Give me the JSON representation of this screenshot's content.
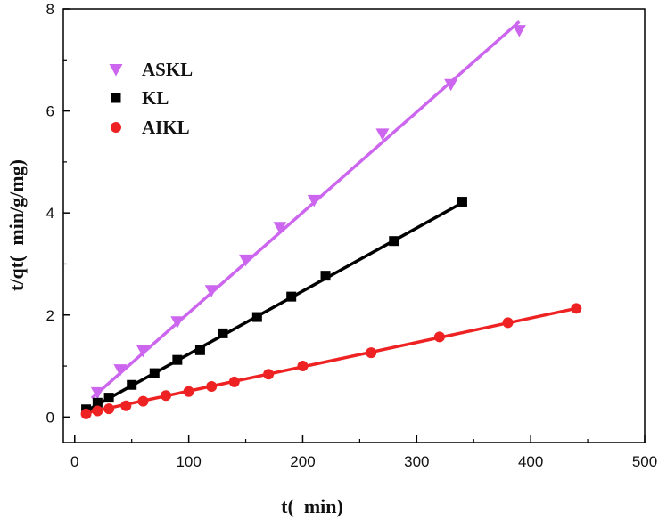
{
  "chart_data": {
    "type": "scatter",
    "title": "",
    "xlabel": "t(  min)",
    "ylabel": "t/qt(  min/g/mg)",
    "xlim": [
      -10,
      500
    ],
    "ylim": [
      -0.5,
      8
    ],
    "xticks": [
      0,
      100,
      200,
      300,
      400,
      500
    ],
    "yticks": [
      0,
      2,
      4,
      6,
      8
    ],
    "grid": false,
    "legend_position": "top-left",
    "series": [
      {
        "name": "ASKL",
        "color": "#cc66ee",
        "marker": "triangle-down",
        "x": [
          20,
          40,
          60,
          90,
          120,
          150,
          180,
          210,
          270,
          330,
          390
        ],
        "y": [
          0.48,
          0.93,
          1.3,
          1.87,
          2.48,
          3.08,
          3.72,
          4.25,
          5.55,
          6.52,
          7.58
        ],
        "fit": {
          "x": [
            15,
            390
          ],
          "y": [
            0.37,
            7.75
          ]
        }
      },
      {
        "name": "KL",
        "color": "#000000",
        "marker": "square",
        "x": [
          10,
          20,
          30,
          50,
          70,
          90,
          110,
          130,
          160,
          190,
          220,
          280,
          340
        ],
        "y": [
          0.15,
          0.28,
          0.38,
          0.63,
          0.86,
          1.12,
          1.31,
          1.64,
          1.96,
          2.36,
          2.77,
          3.45,
          4.22
        ],
        "fit": {
          "x": [
            10,
            340
          ],
          "y": [
            0.12,
            4.2
          ]
        }
      },
      {
        "name": "AIKL",
        "color": "#ee2222",
        "marker": "circle",
        "x": [
          10,
          20,
          30,
          45,
          60,
          80,
          100,
          120,
          140,
          170,
          200,
          260,
          320,
          380,
          440
        ],
        "y": [
          0.06,
          0.12,
          0.16,
          0.22,
          0.31,
          0.42,
          0.5,
          0.6,
          0.69,
          0.84,
          1.0,
          1.26,
          1.57,
          1.85,
          2.13
        ],
        "fit": {
          "x": [
            10,
            440
          ],
          "y": [
            0.08,
            2.13
          ]
        }
      }
    ]
  }
}
